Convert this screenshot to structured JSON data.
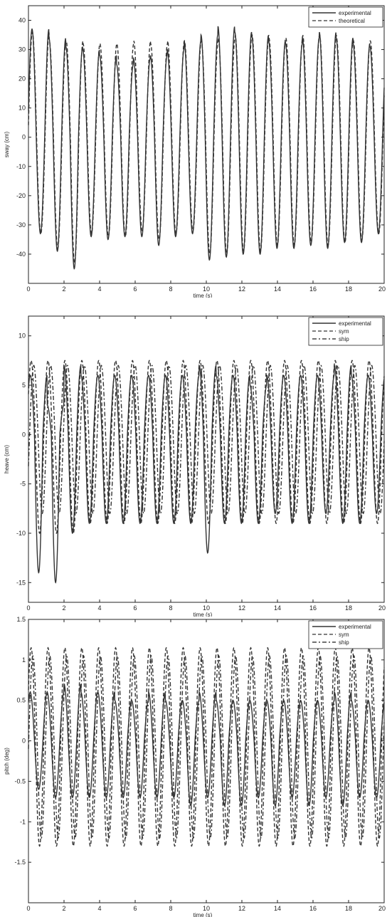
{
  "chart_data": [
    {
      "type": "line",
      "xlabel": "time (s)",
      "ylabel": "sway (cm)",
      "xlim": [
        0,
        20
      ],
      "ylim": [
        -50,
        45
      ],
      "x_ticks": [
        "0",
        "2",
        "4",
        "6",
        "8",
        "10",
        "12",
        "14",
        "16",
        "18",
        "20"
      ],
      "y_ticks": [
        "40",
        "30",
        "20",
        "10",
        "0",
        "-10",
        "-20",
        "-30",
        "-40"
      ],
      "legend": "top-right",
      "grid": false,
      "series": [
        {
          "name": "experimental",
          "style": "solid",
          "color": "#333333",
          "period": 0.95,
          "phase": 0.2,
          "peaks": [
            37,
            34,
            31,
            30,
            28,
            25,
            27,
            28,
            30,
            33,
            35,
            38,
            36,
            35,
            33,
            32,
            34,
            36,
            34,
            32,
            31
          ],
          "troughs": [
            -33,
            -39,
            -45,
            -34,
            -35,
            -34,
            -34,
            -37,
            -34,
            -33,
            -42,
            -41,
            -40,
            -40,
            -38,
            -38,
            -37,
            -38,
            -36,
            -36,
            -33
          ]
        },
        {
          "name": "theoretical",
          "style": "dashed",
          "color": "#555555",
          "period": 0.95,
          "phase": 0.22,
          "peaks": [
            36,
            33,
            33,
            32,
            32,
            32,
            33,
            32,
            33,
            33,
            33,
            34,
            35,
            35,
            34,
            34,
            35,
            35,
            34,
            33,
            33
          ],
          "troughs": [
            -33,
            -38,
            -43,
            -33,
            -34,
            -34,
            -32,
            -35,
            -33,
            -32,
            -40,
            -40,
            -39,
            -39,
            -37,
            -37,
            -36,
            -37,
            -36,
            -35,
            -33
          ]
        }
      ]
    },
    {
      "type": "line",
      "xlabel": "time (s)",
      "ylabel": "heave (cm)",
      "xlim": [
        0,
        20
      ],
      "ylim": [
        -17,
        12
      ],
      "x_ticks": [
        "0",
        "2",
        "4",
        "6",
        "8",
        "10",
        "12",
        "14",
        "16",
        "18",
        "20"
      ],
      "y_ticks": [
        "10",
        "5",
        "0",
        "-5",
        "-10",
        "-15"
      ],
      "legend": "top-right",
      "grid": false,
      "series": [
        {
          "name": "experimental",
          "style": "solid",
          "color": "#333333",
          "period": 0.95,
          "phase": 0.1,
          "peaks": [
            6,
            3,
            7,
            6,
            6,
            6,
            6,
            6,
            6,
            6,
            7,
            6,
            6,
            5,
            6,
            6,
            6,
            6,
            7,
            6,
            6
          ],
          "troughs": [
            -14,
            -15,
            -10,
            -9,
            -9,
            -9,
            -9,
            -9,
            -9,
            -9,
            -12,
            -9,
            -9,
            -9,
            -8,
            -9,
            -9,
            -8,
            -9,
            -9,
            -8
          ]
        },
        {
          "name": "sym",
          "style": "dashed",
          "color": "#555555",
          "period": 0.95,
          "phase": 0.15,
          "peaks": [
            7.5,
            7.5,
            7.5,
            7.5,
            7.5,
            7.5,
            7.5,
            7.5,
            7.5,
            7.5,
            7.5,
            7.5,
            7.5,
            7.5,
            7.5,
            7.5,
            7.5,
            7.5,
            7.5,
            7.5,
            7.5
          ],
          "troughs": [
            -10,
            -10,
            -10,
            -9,
            -9,
            -9,
            -9,
            -9,
            -9,
            -9,
            -9,
            -9,
            -9,
            -9,
            -9,
            -9,
            -9,
            -9,
            -9,
            -9,
            -9
          ]
        },
        {
          "name": "ship",
          "style": "dashdot",
          "color": "#444444",
          "period": 0.95,
          "phase": 0.3,
          "peaks": [
            7,
            7,
            7,
            7,
            7,
            7,
            7,
            7,
            7,
            7,
            7,
            7,
            7,
            7,
            7,
            7,
            7,
            7,
            7,
            7,
            7
          ],
          "troughs": [
            -8,
            -8,
            -8,
            -8,
            -8,
            -8,
            -8,
            -8,
            -8,
            -8,
            -8,
            -8,
            -8,
            -8,
            -8,
            -8,
            -8,
            -8,
            -8,
            -8,
            -8
          ]
        }
      ]
    },
    {
      "type": "line",
      "xlabel": "time (s)",
      "ylabel": "pitch (deg)",
      "xlim": [
        0,
        20
      ],
      "ylim": [
        -2,
        1.5
      ],
      "x_ticks": [
        "0",
        "2",
        "4",
        "6",
        "8",
        "10",
        "12",
        "14",
        "16",
        "18",
        "20"
      ],
      "y_ticks": [
        "1.5",
        "1",
        "0.5",
        "0",
        "-0.5",
        "-1",
        "-1.5"
      ],
      "legend": "top-right",
      "grid": false,
      "series": [
        {
          "name": "experimental",
          "style": "solid",
          "color": "#333333",
          "period": 0.95,
          "phase": 0.1,
          "peaks": [
            0.6,
            0.6,
            0.7,
            0.6,
            0.6,
            0.5,
            0.5,
            0.6,
            0.5,
            0.5,
            0.6,
            0.5,
            0.5,
            0.5,
            0.5,
            0.5,
            0.5,
            0.5,
            0.6,
            0.5,
            0.5
          ],
          "troughs": [
            -0.6,
            -0.7,
            -0.7,
            -0.7,
            -0.7,
            -0.7,
            -0.7,
            -0.7,
            -0.7,
            -0.8,
            -0.7,
            -0.8,
            -0.8,
            -0.7,
            -0.8,
            -0.7,
            -0.8,
            -0.7,
            -0.8,
            -0.7,
            -0.7
          ]
        },
        {
          "name": "sym",
          "style": "dashed",
          "color": "#555555",
          "period": 0.95,
          "phase": 0.15,
          "peaks": [
            1.15,
            1.15,
            1.15,
            1.15,
            1.15,
            1.15,
            1.15,
            1.15,
            1.15,
            1.15,
            1.15,
            1.15,
            1.15,
            1.15,
            1.15,
            1.15,
            1.15,
            1.15,
            1.15,
            1.15,
            1.15
          ],
          "troughs": [
            -1.3,
            -1.3,
            -1.3,
            -1.3,
            -1.3,
            -1.3,
            -1.3,
            -1.3,
            -1.3,
            -1.3,
            -1.3,
            -1.3,
            -1.3,
            -1.3,
            -1.3,
            -1.3,
            -1.3,
            -1.3,
            -1.3,
            -1.3,
            -1.3
          ]
        },
        {
          "name": "ship",
          "style": "dashdot",
          "color": "#444444",
          "period": 0.95,
          "phase": 0.25,
          "peaks": [
            1.05,
            1.05,
            1.05,
            1.05,
            1.05,
            1.05,
            1.05,
            1.05,
            1.05,
            1.05,
            1.05,
            1.05,
            1.05,
            1.05,
            1.05,
            1.05,
            1.05,
            1.05,
            1.05,
            1.05,
            1.05
          ],
          "troughs": [
            -1.2,
            -1.2,
            -1.2,
            -1.2,
            -1.2,
            -1.2,
            -1.2,
            -1.2,
            -1.2,
            -1.2,
            -1.2,
            -1.2,
            -1.2,
            -1.2,
            -1.2,
            -1.2,
            -1.2,
            -1.2,
            -1.2,
            -1.2,
            -1.2
          ]
        }
      ]
    }
  ]
}
